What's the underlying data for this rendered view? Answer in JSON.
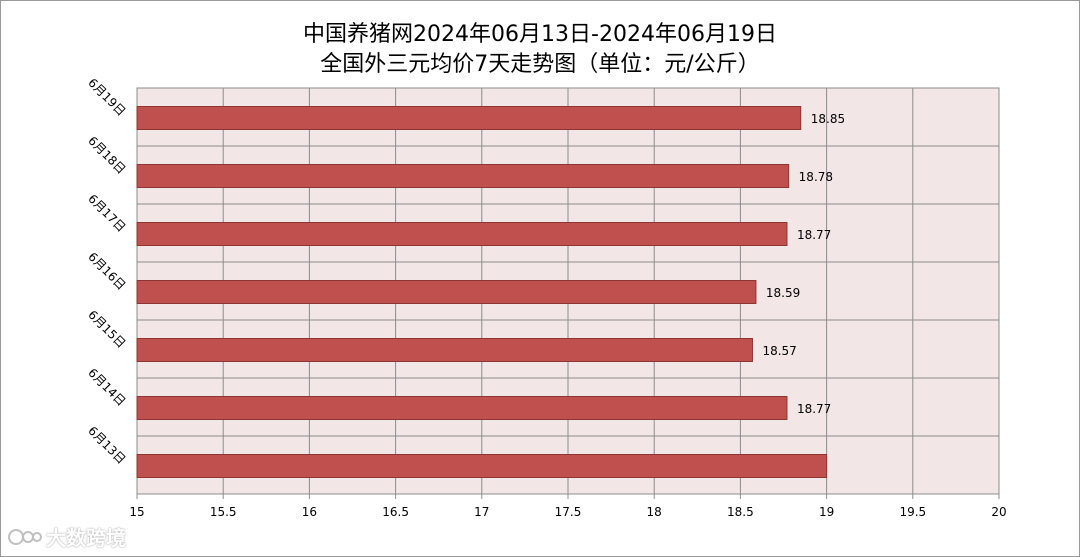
{
  "chart_data": {
    "type": "bar",
    "orientation": "horizontal",
    "title_line1": "中国养猪网2024年06月13日-2024年06月19日",
    "title_line2": "全国外三元均价7天走势图（单位：元/公斤）",
    "categories": [
      "6月19日",
      "6月18日",
      "6月17日",
      "6月16日",
      "6月15日",
      "6月14日",
      "6月13日"
    ],
    "values": [
      18.85,
      18.78,
      18.77,
      18.59,
      18.57,
      18.77,
      19.0
    ],
    "data_labels": [
      "18.85",
      "18.78",
      "18.77",
      "18.59",
      "18.57",
      "18.77",
      ""
    ],
    "x_ticks": [
      "15",
      "15.5",
      "16",
      "16.5",
      "17",
      "17.5",
      "18",
      "18.5",
      "19",
      "19.5",
      "20"
    ],
    "xlim": [
      15,
      20
    ],
    "grid": true,
    "colors": {
      "bar_fill": "#c0504d",
      "bar_stroke": "#8c3634",
      "plot_background": "#f2e6e6",
      "grid": "#8c8c8c"
    }
  },
  "watermark": {
    "text": "大数跨境"
  }
}
